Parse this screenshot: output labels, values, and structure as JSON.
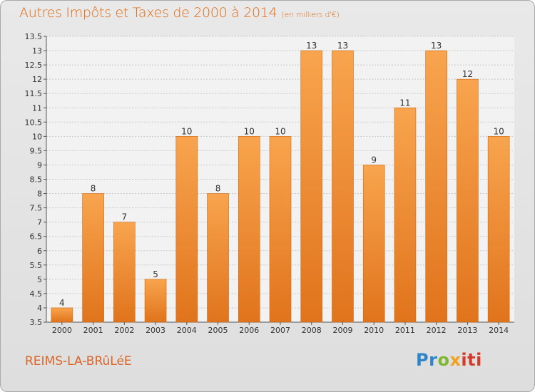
{
  "header": {
    "title": "Autres Impôts et Taxes de 2000 à 2014",
    "unit": "(en milliers d'€)"
  },
  "footer": {
    "place": "REIMS-LA-BRûLéE",
    "logo_parts": [
      "Pr",
      "o",
      "x",
      "iti"
    ]
  },
  "colors": {
    "bar_top": "#f8a44e",
    "bar_bottom": "#e0741c",
    "bar_edge": "#d0680f",
    "title": "#e06a12",
    "grid": "#c9c9c9",
    "plot_bg": "#f2f2f2"
  },
  "chart_data": {
    "type": "bar",
    "categories": [
      "2000",
      "2001",
      "2002",
      "2003",
      "2004",
      "2005",
      "2006",
      "2007",
      "2008",
      "2009",
      "2010",
      "2011",
      "2012",
      "2013",
      "2014"
    ],
    "values": [
      4,
      8,
      7,
      5,
      10,
      8,
      10,
      10,
      13,
      13,
      9,
      11,
      13,
      12,
      10
    ],
    "ylim": [
      3.5,
      13.5
    ],
    "yticks": [
      "3.5",
      "4",
      "4.5",
      "5",
      "5.5",
      "6",
      "6.5",
      "7",
      "7.5",
      "8",
      "8.5",
      "9",
      "9.5",
      "10",
      "10.5",
      "11",
      "11.5",
      "12",
      "12.5",
      "13",
      "13.5"
    ],
    "grid": true,
    "xlabel": "",
    "ylabel": ""
  }
}
